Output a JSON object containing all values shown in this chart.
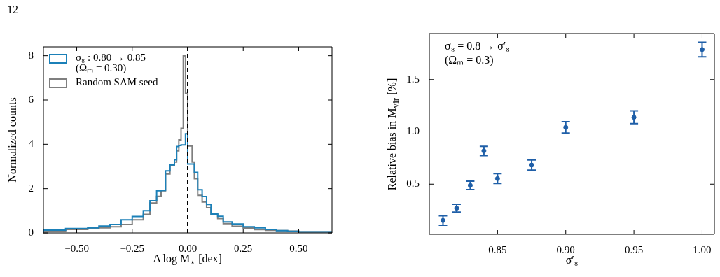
{
  "chart_data": [
    {
      "type": "step",
      "xlabel": "Δ log M$_{⋆}$ [dex]",
      "ylabel": "Normalized counts",
      "annotations": [
        "12"
      ],
      "x": [
        -0.65,
        -0.55,
        -0.45,
        -0.4,
        -0.35,
        -0.3,
        -0.25,
        -0.2,
        -0.17,
        -0.14,
        -0.12,
        -0.1,
        -0.08,
        -0.06,
        -0.05,
        -0.04,
        -0.03,
        -0.02,
        -0.01,
        0,
        0.02,
        0.03,
        0.045,
        0.065,
        0.085,
        0.105,
        0.135,
        0.16,
        0.2,
        0.25,
        0.3,
        0.35,
        0.4,
        0.45,
        0.5,
        0.55,
        0.65
      ],
      "series": [
        {
          "name": "σ₈ : 0.80 → 0.85 (Ωₘ = 0.30)",
          "color": "#1b80b8",
          "values": [
            0.05,
            0.13,
            0.2,
            0.23,
            0.31,
            0.38,
            0.59,
            0.74,
            1.0,
            1.45,
            1.9,
            1.92,
            2.8,
            3.07,
            3.3,
            3.9,
            3.95,
            3.97,
            3.97,
            4.48,
            3.11,
            3.11,
            2.73,
            1.95,
            1.64,
            1.29,
            0.85,
            0.75,
            0.5,
            0.4,
            0.28,
            0.23,
            0.16,
            0.1,
            0.07,
            0.05,
            0.05
          ]
        },
        {
          "name": "Random SAM seed",
          "color": "#7f7f7f",
          "values": [
            0.05,
            0.08,
            0.16,
            0.21,
            0.23,
            0.28,
            0.38,
            0.59,
            0.84,
            1.35,
            1.65,
            1.9,
            2.66,
            3.04,
            3.2,
            3.7,
            4.2,
            4.72,
            8.0,
            6.3,
            3.92,
            3.2,
            2.45,
            1.7,
            1.4,
            1.14,
            0.84,
            0.65,
            0.42,
            0.3,
            0.22,
            0.15,
            0.12,
            0.1,
            0.08,
            0.05,
            0.05
          ]
        }
      ],
      "xlim": [
        -0.65,
        0.65
      ],
      "ylim": [
        0,
        8.4
      ],
      "xticks": [
        {
          "value": -0.5,
          "label": "−0.50"
        },
        {
          "value": -0.25,
          "label": "−0.25"
        },
        {
          "value": 0,
          "label": "0.00"
        },
        {
          "value": 0.25,
          "label": "0.25"
        },
        {
          "value": 0.5,
          "label": "0.50"
        }
      ],
      "yticks": [
        0,
        2,
        4,
        6,
        8
      ],
      "ref_lines": [
        {
          "axis": "x",
          "value": 0,
          "color": "#000000",
          "line_style": "dashed"
        }
      ],
      "legend": "top left"
    },
    {
      "type": "scatter",
      "xlabel": "σ′₈",
      "ylabel": "Relative bias in M$_{vir}$ [%]",
      "annotations": [
        "σ₈ = 0.8 → σ′₈",
        "(Ωₘ = 0.3)"
      ],
      "x": [
        0.81,
        0.82,
        0.83,
        0.84,
        0.85,
        0.875,
        0.9,
        0.95,
        1.0
      ],
      "values": [
        0.152,
        0.27,
        0.488,
        0.817,
        0.553,
        0.682,
        1.043,
        1.139,
        1.787
      ],
      "errors": [
        0.045,
        0.038,
        0.04,
        0.045,
        0.047,
        0.049,
        0.054,
        0.061,
        0.069
      ],
      "color": "#1f5fa8",
      "marker": "circle",
      "xlim": [
        0.8,
        1.009
      ],
      "ylim": [
        0.02,
        1.94
      ],
      "xticks": [
        {
          "value": 0.85,
          "label": "0.85"
        },
        {
          "value": 0.9,
          "label": "0.90"
        },
        {
          "value": 0.95,
          "label": "0.95"
        },
        {
          "value": 1.0,
          "label": "1.00"
        }
      ],
      "yticks": [
        0.5,
        {
          "value": 1.0,
          "label": "1.0"
        },
        1.5
      ]
    }
  ]
}
